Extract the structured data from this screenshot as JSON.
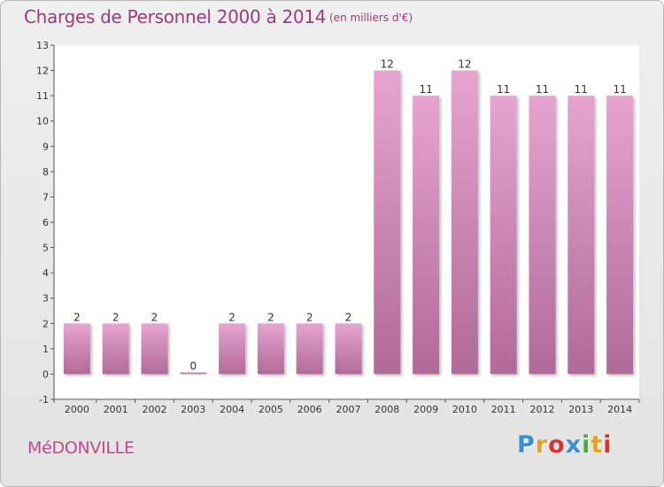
{
  "header": {
    "title": "Charges de Personnel 2000 à 2014",
    "subtitle": "(en milliers d'€)"
  },
  "footer": {
    "commune": "MéDONVILLE",
    "brand": {
      "letters": [
        "P",
        "r",
        "o",
        "x",
        "i",
        "t",
        "i"
      ],
      "colors": [
        "#3a8fd0",
        "#e8a020",
        "#e23030",
        "#3a8fd0",
        "#4aaa3a",
        "#e8a020",
        "#e23030"
      ]
    }
  },
  "chart_data": {
    "type": "bar",
    "categories": [
      "2000",
      "2001",
      "2002",
      "2003",
      "2004",
      "2005",
      "2006",
      "2007",
      "2008",
      "2009",
      "2010",
      "2011",
      "2012",
      "2013",
      "2014"
    ],
    "values": [
      2,
      2,
      2,
      0,
      2,
      2,
      2,
      2,
      12,
      11,
      12,
      11,
      11,
      11,
      11
    ],
    "value_labels": [
      "2",
      "2",
      "2",
      "0",
      "2",
      "2",
      "2",
      "2",
      "12",
      "11",
      "12",
      "11",
      "11",
      "11",
      "11"
    ],
    "yticks": [
      -1,
      0,
      1,
      2,
      3,
      4,
      5,
      6,
      7,
      8,
      9,
      10,
      11,
      12,
      13
    ],
    "ytick_labels": [
      "-1",
      "0",
      "1",
      "2",
      "3",
      "4",
      "5",
      "6",
      "7",
      "8",
      "9",
      "10",
      "11",
      "12",
      "13"
    ],
    "ylim": [
      -1,
      13
    ],
    "bar_color_top": "#e6a4cf",
    "bar_color_bottom": "#b06a98",
    "plot_background": "#ffffff",
    "grid": false
  }
}
